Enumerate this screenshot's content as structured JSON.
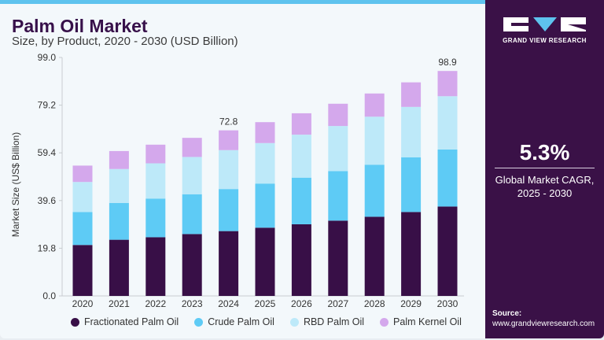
{
  "header": {
    "title": "Palm Oil Market",
    "subtitle": "Size, by Product, 2020 - 2030 (USD Billion)"
  },
  "brand": {
    "name": "GRAND VIEW RESEARCH"
  },
  "sidebar": {
    "cagr_value": "5.3%",
    "cagr_label_line1": "Global Market CAGR,",
    "cagr_label_line2": "2025 - 2030",
    "source_label": "Source:",
    "source_url": "www.grandviewresearch.com"
  },
  "colors": {
    "accent_panel": "#3a1147",
    "stripe": "#5ec3ee"
  },
  "chart_data": {
    "type": "bar",
    "stacked": true,
    "title": "Palm Oil Market",
    "ylabel": "Market Size (US$ Billion)",
    "xlabel": "",
    "ylim": [
      0,
      99.0
    ],
    "yticks": [
      "0.0",
      "19.8",
      "39.6",
      "59.4",
      "79.2",
      "99.0"
    ],
    "grid": false,
    "legend_position": "bottom",
    "categories": [
      "2020",
      "2021",
      "2022",
      "2023",
      "2024",
      "2025",
      "2026",
      "2027",
      "2028",
      "2029",
      "2030"
    ],
    "series": [
      {
        "name": "Fractionated Palm Oil",
        "color": "#380f47",
        "values": [
          22.4,
          24.7,
          25.8,
          27.2,
          28.5,
          30.0,
          31.5,
          33.1,
          34.8,
          36.9,
          39.3
        ]
      },
      {
        "name": "Crude Palm Oil",
        "color": "#5ecbf5",
        "values": [
          14.5,
          16.2,
          17.0,
          17.5,
          18.5,
          19.4,
          20.5,
          21.8,
          22.9,
          24.0,
          25.1
        ]
      },
      {
        "name": "RBD Palm Oil",
        "color": "#bde9f9",
        "values": [
          13.2,
          14.9,
          15.5,
          16.4,
          17.1,
          17.8,
          18.9,
          19.8,
          21.1,
          22.2,
          23.4
        ]
      },
      {
        "name": "Palm Kernel Oil",
        "color": "#d4a8ec",
        "values": [
          7.2,
          7.9,
          8.2,
          8.4,
          8.7,
          9.2,
          9.4,
          9.8,
          10.2,
          10.8,
          11.1
        ]
      }
    ],
    "annotations": [
      {
        "category": "2024",
        "text": "72.8"
      },
      {
        "category": "2030",
        "text": "98.9"
      }
    ]
  }
}
